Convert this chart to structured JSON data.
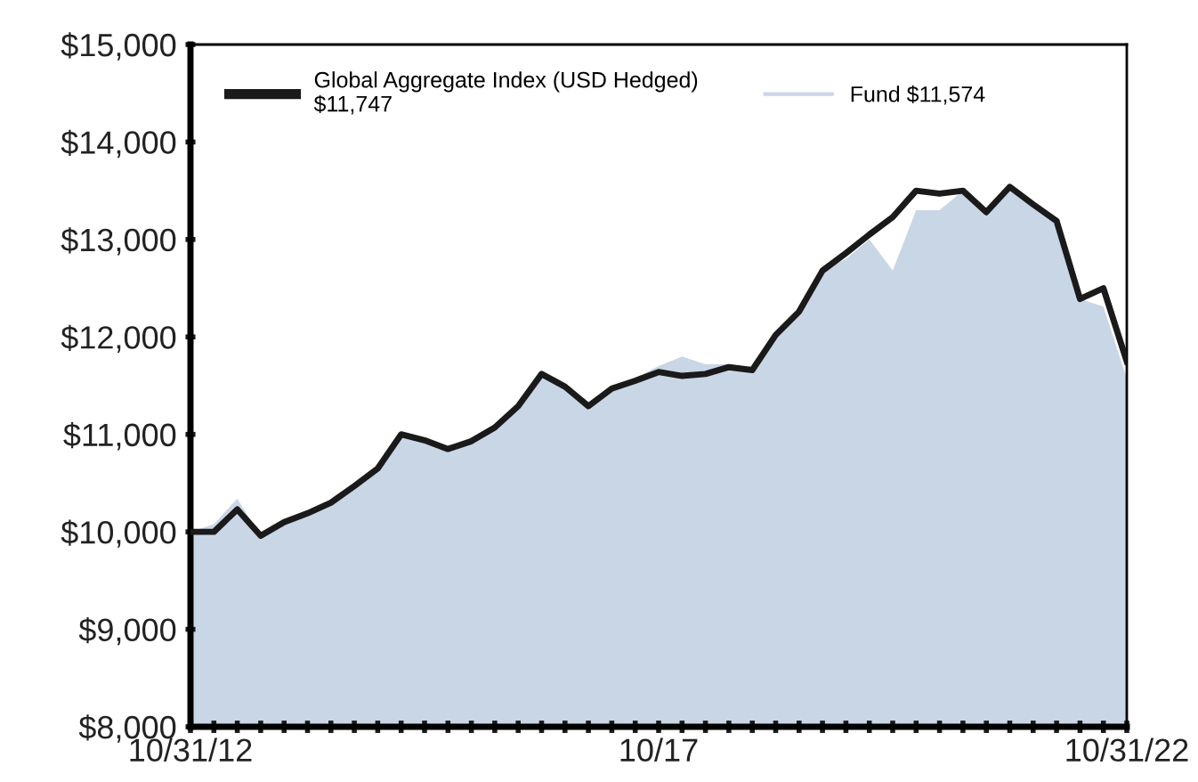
{
  "chart_data": {
    "type": "line",
    "categories": [
      "10/31/12",
      null,
      null,
      null,
      null,
      null,
      null,
      null,
      null,
      null,
      null,
      null,
      null,
      null,
      null,
      null,
      null,
      null,
      null,
      null,
      "10/17",
      null,
      null,
      null,
      null,
      null,
      null,
      null,
      null,
      null,
      null,
      null,
      null,
      null,
      null,
      null,
      null,
      null,
      null,
      null,
      "10/31/22"
    ],
    "series": [
      {
        "name": "Fund $11,574",
        "type": "area",
        "color": "#c9d6e6",
        "values": [
          10000,
          10080,
          10340,
          9960,
          10100,
          10190,
          10300,
          10470,
          10650,
          11000,
          10940,
          10850,
          10930,
          11070,
          11250,
          11600,
          11490,
          11290,
          11470,
          11580,
          11700,
          11800,
          11720,
          11720,
          11660,
          12020,
          12260,
          12680,
          12800,
          13000,
          12680,
          13300,
          13300,
          13500,
          13280,
          13540,
          13360,
          13190,
          12390,
          12310,
          11574
        ]
      },
      {
        "name": "Global Aggregate Index (USD Hedged)\n$11,747",
        "color": "#1a1a1a",
        "values": [
          10000,
          10000,
          10230,
          9960,
          10100,
          10190,
          10300,
          10470,
          10650,
          11000,
          10940,
          10850,
          10930,
          11070,
          11290,
          11620,
          11490,
          11290,
          11470,
          11550,
          11640,
          11600,
          11620,
          11690,
          11660,
          12020,
          12260,
          12680,
          12860,
          13050,
          13230,
          13500,
          13470,
          13500,
          13280,
          13540,
          13360,
          13190,
          12390,
          12500,
          11747
        ]
      }
    ],
    "ylim": [
      8000,
      15000
    ],
    "yticks": [
      {
        "value": 8000,
        "label": "$8,000"
      },
      {
        "value": 9000,
        "label": "$9,000"
      },
      {
        "value": 10000,
        "label": "$10,000"
      },
      {
        "value": 11000,
        "label": "$11,000"
      },
      {
        "value": 12000,
        "label": "$12,000"
      },
      {
        "value": 13000,
        "label": "$13,000"
      },
      {
        "value": 14000,
        "label": "$14,000"
      },
      {
        "value": 15000,
        "label": "$15,000"
      }
    ],
    "legend": "top left",
    "grid": false
  }
}
